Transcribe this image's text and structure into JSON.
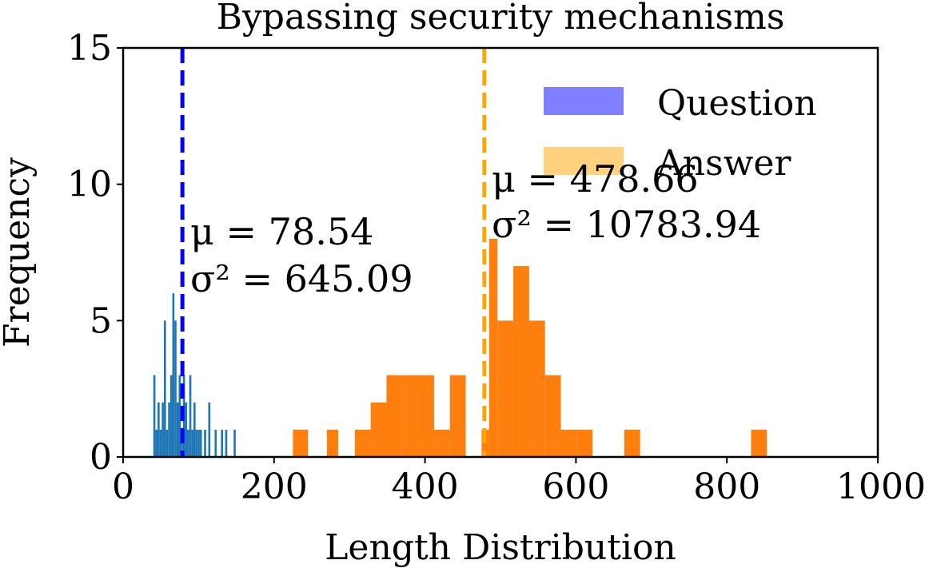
{
  "chart_data": {
    "type": "bar",
    "title": "Bypassing security mechanisms",
    "xlabel": "Length Distribution",
    "ylabel": "Frequency",
    "xlim": [
      0,
      1000
    ],
    "ylim": [
      0,
      15
    ],
    "xticks": [
      "0",
      "200",
      "400",
      "600",
      "800",
      "1000"
    ],
    "yticks": [
      "0",
      "5",
      "10",
      "15"
    ],
    "legend": {
      "placement": "top-right",
      "entries": [
        "Question",
        "Answer"
      ]
    },
    "series": [
      {
        "name": "Question",
        "color": "#1f77b4",
        "bins": [
          [
            40,
            42.8,
            3
          ],
          [
            42.8,
            45.6,
            1
          ],
          [
            45.6,
            48.4,
            2
          ],
          [
            48.4,
            51.2,
            1
          ],
          [
            51.2,
            54,
            2
          ],
          [
            54,
            56.8,
            5
          ],
          [
            56.8,
            59.6,
            1
          ],
          [
            59.6,
            62.4,
            2
          ],
          [
            62.4,
            65.2,
            3
          ],
          [
            65.2,
            68,
            6
          ],
          [
            68,
            70.8,
            5
          ],
          [
            70.8,
            73.6,
            2
          ],
          [
            73.6,
            76.4,
            3
          ],
          [
            76.4,
            79.2,
            1
          ],
          [
            79.2,
            82,
            3
          ],
          [
            82,
            84.8,
            2
          ],
          [
            84.8,
            87.6,
            1
          ],
          [
            87.6,
            90.4,
            3
          ],
          [
            90.4,
            93.2,
            1
          ],
          [
            93.2,
            96,
            2
          ],
          [
            96,
            98.8,
            1
          ],
          [
            98.8,
            101.6,
            1
          ],
          [
            101.6,
            104.4,
            1
          ],
          [
            107.2,
            110,
            1
          ],
          [
            112.8,
            115.6,
            2
          ],
          [
            121.2,
            124,
            1
          ],
          [
            129.6,
            132.4,
            1
          ],
          [
            135.2,
            138,
            1
          ],
          [
            146.4,
            149.2,
            1
          ]
        ],
        "mean_label": "μ = 78.54",
        "variance_label": "σ² = 645.09",
        "mean": 78.54,
        "mean_line_color": "#0000ff"
      },
      {
        "name": "Answer",
        "color": "#ff7f0e",
        "bins": [
          [
            225,
            245,
            1
          ],
          [
            270,
            285,
            1
          ],
          [
            307,
            328,
            1
          ],
          [
            328,
            349,
            2
          ],
          [
            349,
            370,
            3
          ],
          [
            370,
            391,
            3
          ],
          [
            391,
            412,
            3
          ],
          [
            412,
            433,
            1
          ],
          [
            433,
            454,
            3
          ],
          [
            475,
            485,
            1
          ],
          [
            485,
            496,
            8
          ],
          [
            496,
            517,
            5
          ],
          [
            517,
            538,
            7
          ],
          [
            538,
            559,
            5
          ],
          [
            559,
            580,
            3
          ],
          [
            580,
            601,
            1
          ],
          [
            601,
            622,
            1
          ],
          [
            664,
            685,
            1
          ],
          [
            832,
            853,
            1
          ]
        ],
        "mean_label": "μ = 478.66",
        "variance_label": "σ² = 10783.94",
        "mean": 478.66,
        "mean_line_color": "#ffa500"
      }
    ]
  }
}
